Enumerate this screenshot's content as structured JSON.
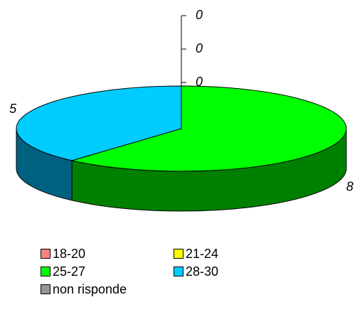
{
  "chart_data": {
    "type": "pie",
    "categories": [
      "18-20",
      "21-24",
      "25-27",
      "28-30",
      "non risponde"
    ],
    "values": [
      0,
      0,
      8,
      5,
      0
    ],
    "colors": [
      "#ff8080",
      "#ffff00",
      "#00ff00",
      "#00ccff",
      "#969696"
    ],
    "side_colors": [
      "#993333",
      "#999900",
      "#008000",
      "#006080",
      "#505050"
    ],
    "data_labels": [
      "0",
      "0",
      "8",
      "5",
      "0"
    ],
    "legend_position": "bottom",
    "three_d": true
  }
}
